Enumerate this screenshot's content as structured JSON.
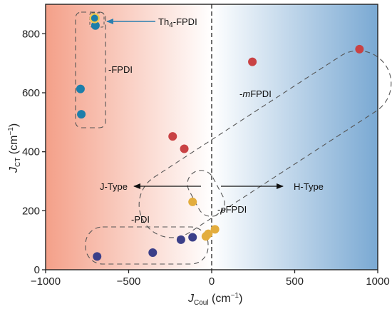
{
  "chart_data": {
    "type": "scatter",
    "title": "",
    "xlabel": "J",
    "xlabel_sub": "Coul",
    "xlabel_unit": " (cm",
    "xlabel_unit_sup": "−1",
    "xlabel_unit_close": ")",
    "ylabel": "J",
    "ylabel_sub": "CT",
    "ylabel_unit": " (cm",
    "ylabel_unit_sup": "−1",
    "ylabel_unit_close": ")",
    "xlim": [
      -1000,
      1000
    ],
    "ylim": [
      0,
      900
    ],
    "xticks": [
      "−1000",
      "−500",
      "0",
      "500",
      "1000"
    ],
    "xtick_values": [
      -1000,
      -500,
      0,
      500,
      1000
    ],
    "yticks": [
      "0",
      "200",
      "400",
      "600",
      "800"
    ],
    "ytick_values": [
      0,
      200,
      400,
      600,
      800
    ],
    "grid": false,
    "background": {
      "left_color": "#f4a089",
      "right_color": "#7aa9d3"
    },
    "series": [
      {
        "group": "FPDI",
        "color": "#1d7eaa",
        "points": [
          [
            -700,
            828
          ],
          [
            -790,
            613
          ],
          [
            -785,
            527
          ]
        ]
      },
      {
        "group": "Th4-FPDI",
        "color": "#1d7eaa",
        "edge": "#f2c94c",
        "points": [
          [
            -705,
            853
          ]
        ]
      },
      {
        "group": "mFPDI",
        "color": "#c94244",
        "points": [
          [
            245,
            705
          ],
          [
            890,
            748
          ],
          [
            -235,
            452
          ],
          [
            -165,
            410
          ]
        ]
      },
      {
        "group": "pFPDI",
        "color": "#e3ad3e",
        "points": [
          [
            -115,
            230
          ],
          [
            20,
            137
          ],
          [
            -20,
            122
          ],
          [
            -35,
            113
          ]
        ]
      },
      {
        "group": "PDI",
        "color": "#3b3f89",
        "points": [
          [
            -690,
            45
          ],
          [
            -355,
            58
          ],
          [
            -185,
            102
          ],
          [
            -115,
            110
          ]
        ]
      }
    ],
    "annotations": {
      "th4": {
        "text": "Th",
        "sub": "4",
        "rest": "-FPDI"
      },
      "fpdi": "-FPDI",
      "mfpdi_prefix": "-",
      "mfpdi_italic": "m",
      "mfpdi_rest": "FPDI",
      "pfpdi_prefix": "-",
      "pfpdi_italic": "p",
      "pfpdi_rest": "FPDI",
      "pdi": "-PDI",
      "jtype": "J-Type",
      "htype": "H-Type"
    }
  }
}
